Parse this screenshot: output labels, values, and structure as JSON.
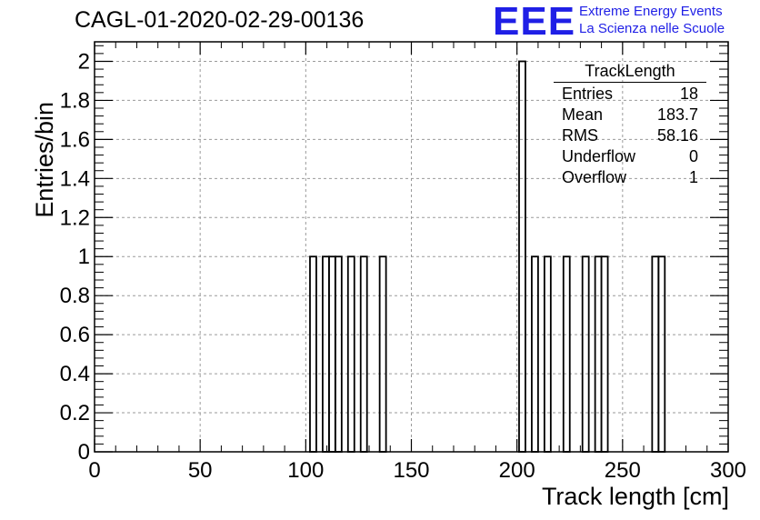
{
  "chart_data": {
    "type": "bar",
    "title": "CAGL-01-2020-02-29-00136",
    "xlabel": "Track length [cm]",
    "ylabel": "Entries/bin",
    "xlim": [
      0,
      300
    ],
    "ylim": [
      0,
      2.1
    ],
    "grid": true,
    "bin_width": 3,
    "xticks": [
      0,
      50,
      100,
      150,
      200,
      250,
      300
    ],
    "xtick_labels": [
      "0",
      "50",
      "100",
      "150",
      "200",
      "250",
      "300"
    ],
    "yticks": [
      0,
      0.2,
      0.4,
      0.6,
      0.8,
      1,
      1.2,
      1.4,
      1.6,
      1.8,
      2
    ],
    "ytick_labels": [
      "0",
      "0.2",
      "0.4",
      "0.6",
      "0.8",
      "1",
      "1.2",
      "1.4",
      "1.6",
      "1.8",
      "2"
    ],
    "bins": [
      {
        "x": 102,
        "y": 1
      },
      {
        "x": 108,
        "y": 1
      },
      {
        "x": 111,
        "y": 1
      },
      {
        "x": 114,
        "y": 1
      },
      {
        "x": 120,
        "y": 1
      },
      {
        "x": 126,
        "y": 1
      },
      {
        "x": 135,
        "y": 1
      },
      {
        "x": 201,
        "y": 2
      },
      {
        "x": 207,
        "y": 1
      },
      {
        "x": 213,
        "y": 1
      },
      {
        "x": 222,
        "y": 1
      },
      {
        "x": 231,
        "y": 1
      },
      {
        "x": 237,
        "y": 1
      },
      {
        "x": 240,
        "y": 1
      },
      {
        "x": 264,
        "y": 1
      },
      {
        "x": 267,
        "y": 1
      }
    ]
  },
  "stats_box": {
    "name": "TrackLength",
    "rows": [
      {
        "label": "Entries",
        "value": "18"
      },
      {
        "label": "Mean",
        "value": "183.7"
      },
      {
        "label": "RMS",
        "value": "58.16"
      },
      {
        "label": "Underflow",
        "value": "0"
      },
      {
        "label": "Overflow",
        "value": "1"
      }
    ]
  },
  "logo": {
    "mark": "EEE",
    "line1": "Extreme Energy Events",
    "line2": "La Scienza nelle Scuole"
  },
  "colors": {
    "logo": "#1f1fe6",
    "grid": "#9a9a9a",
    "line": "#000000"
  }
}
